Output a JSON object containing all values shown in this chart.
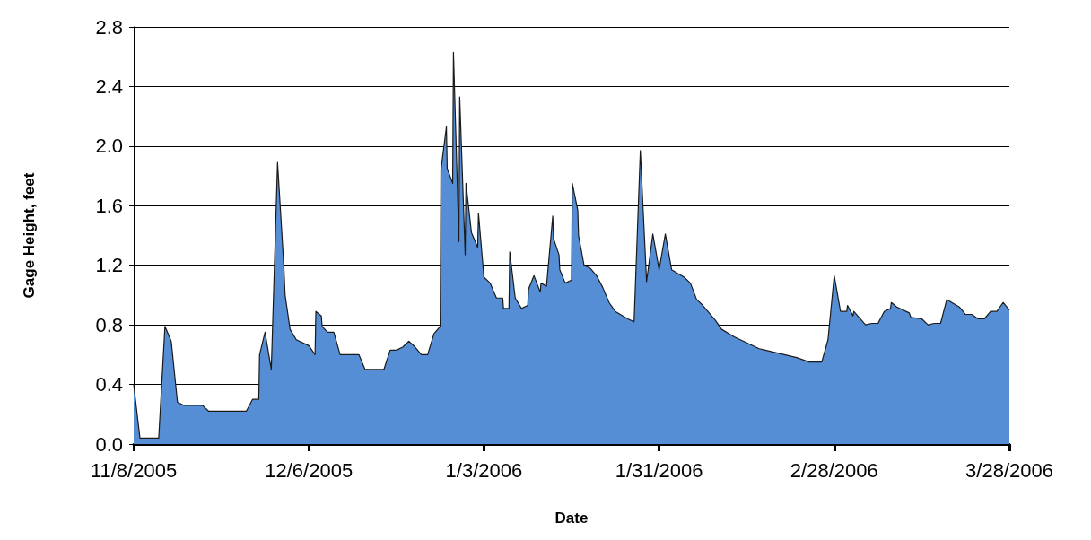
{
  "chart_data": {
    "type": "area",
    "xlabel": "Date",
    "ylabel": "Gage Height, feet",
    "xlim": [
      "2005-11-08",
      "2006-03-28"
    ],
    "xticks": [
      {
        "value": "2005-11-08",
        "label": "11/8/2005"
      },
      {
        "value": "2005-12-06",
        "label": "12/6/2005"
      },
      {
        "value": "2006-01-03",
        "label": "1/3/2006"
      },
      {
        "value": "2006-01-31",
        "label": "1/31/2006"
      },
      {
        "value": "2006-02-28",
        "label": "2/28/2006"
      },
      {
        "value": "2006-03-28",
        "label": "3/28/2006"
      }
    ],
    "ylim": [
      0,
      2.8
    ],
    "yticks": [
      {
        "value": 0,
        "label": "0.0"
      },
      {
        "value": 0.4,
        "label": "0.4"
      },
      {
        "value": 0.8,
        "label": "0.8"
      },
      {
        "value": 1.2,
        "label": "1.2"
      },
      {
        "value": 1.6,
        "label": "1.6"
      },
      {
        "value": 2,
        "label": "2.0"
      },
      {
        "value": 2.4,
        "label": "2.4"
      },
      {
        "value": 2.8,
        "label": "2.8"
      }
    ],
    "grid": "y",
    "series": [
      {
        "color": "#558ed5",
        "x": [
          "2005-11-08",
          "2005-11-09",
          "2005-11-12",
          "2005-11-13",
          "2005-11-14",
          "2005-11-15",
          "2005-11-16",
          "2005-11-19",
          "2005-11-20",
          "2005-11-26",
          "2005-11-27",
          "2005-11-28",
          "2005-11-28T03:00",
          "2005-11-29",
          "2005-11-30",
          "2005-12-01",
          "2005-12-02",
          "2005-12-02T05:00",
          "2005-12-03",
          "2005-12-04",
          "2005-12-06",
          "2005-12-07",
          "2005-12-07T03:00",
          "2005-12-08",
          "2005-12-08T03:00",
          "2005-12-09",
          "2005-12-10",
          "2005-12-11",
          "2005-12-14",
          "2005-12-15",
          "2005-12-18",
          "2005-12-19",
          "2005-12-20",
          "2005-12-21",
          "2005-12-22",
          "2005-12-23",
          "2005-12-24",
          "2005-12-25",
          "2005-12-26",
          "2005-12-27",
          "2005-12-27T03:00",
          "2005-12-28",
          "2005-12-28T03:00",
          "2005-12-29",
          "2005-12-29T03:00",
          "2005-12-30",
          "2005-12-30T03:00",
          "2005-12-31",
          "2005-12-31T03:00",
          "2006-01-01",
          "2006-01-02",
          "2006-01-02T03:00",
          "2006-01-03",
          "2006-01-04",
          "2006-01-05",
          "2006-01-06",
          "2006-01-06T03:00",
          "2006-01-07",
          "2006-01-07T03:00",
          "2006-01-08",
          "2006-01-09",
          "2006-01-10",
          "2006-01-10T03:00",
          "2006-01-11",
          "2006-01-12",
          "2006-01-12T03:00",
          "2006-01-13",
          "2006-01-14",
          "2006-01-14T03:00",
          "2006-01-15",
          "2006-01-15T03:00",
          "2006-01-16",
          "2006-01-17",
          "2006-01-17T03:00",
          "2006-01-18",
          "2006-01-18T03:00",
          "2006-01-19",
          "2006-01-20",
          "2006-01-21",
          "2006-01-22",
          "2006-01-23",
          "2006-01-24",
          "2006-01-26",
          "2006-01-27",
          "2006-01-28",
          "2006-01-29",
          "2006-01-30",
          "2006-01-31",
          "2006-02-01",
          "2006-02-02",
          "2006-02-04",
          "2006-02-05",
          "2006-02-06",
          "2006-02-07",
          "2006-02-09",
          "2006-02-10",
          "2006-02-12",
          "2006-02-16",
          "2006-02-17",
          "2006-02-22",
          "2006-02-24",
          "2006-02-26",
          "2006-02-27",
          "2006-02-28",
          "2006-03-01",
          "2006-03-02",
          "2006-03-02T03:00",
          "2006-03-03",
          "2006-03-03T03:00",
          "2006-03-05",
          "2006-03-06",
          "2006-03-07",
          "2006-03-08",
          "2006-03-09",
          "2006-03-09T03:00",
          "2006-03-10",
          "2006-03-12",
          "2006-03-12T06:00",
          "2006-03-14",
          "2006-03-15",
          "2006-03-16",
          "2006-03-17",
          "2006-03-18",
          "2006-03-20",
          "2006-03-21",
          "2006-03-22",
          "2006-03-23",
          "2006-03-24",
          "2006-03-25",
          "2006-03-26",
          "2006-03-27",
          "2006-03-28"
        ],
        "values": [
          0.4,
          0.04,
          0.04,
          0.79,
          0.69,
          0.28,
          0.26,
          0.26,
          0.22,
          0.22,
          0.3,
          0.3,
          0.6,
          0.75,
          0.5,
          1.89,
          1.2,
          1.0,
          0.77,
          0.7,
          0.66,
          0.6,
          0.89,
          0.86,
          0.79,
          0.75,
          0.75,
          0.6,
          0.6,
          0.5,
          0.5,
          0.63,
          0.63,
          0.65,
          0.69,
          0.65,
          0.6,
          0.6,
          0.74,
          0.79,
          1.84,
          2.13,
          1.85,
          1.75,
          2.63,
          1.36,
          2.33,
          1.27,
          1.75,
          1.42,
          1.32,
          1.55,
          1.12,
          1.08,
          0.98,
          0.98,
          0.91,
          0.91,
          1.29,
          0.98,
          0.91,
          0.93,
          1.04,
          1.13,
          1.02,
          1.08,
          1.06,
          1.53,
          1.38,
          1.27,
          1.17,
          1.08,
          1.1,
          1.75,
          1.57,
          1.4,
          1.2,
          1.18,
          1.13,
          1.05,
          0.95,
          0.89,
          0.84,
          0.82,
          1.97,
          1.09,
          1.41,
          1.17,
          1.41,
          1.17,
          1.12,
          1.08,
          0.97,
          0.93,
          0.83,
          0.77,
          0.72,
          0.64,
          0.63,
          0.58,
          0.55,
          0.55,
          0.7,
          1.13,
          0.89,
          0.89,
          0.93,
          0.86,
          0.89,
          0.8,
          0.81,
          0.81,
          0.89,
          0.91,
          0.95,
          0.92,
          0.88,
          0.85,
          0.84,
          0.8,
          0.81,
          0.81,
          0.97,
          0.92,
          0.87,
          0.87,
          0.84,
          0.84,
          0.89,
          0.89,
          0.95,
          0.9
        ]
      }
    ]
  }
}
